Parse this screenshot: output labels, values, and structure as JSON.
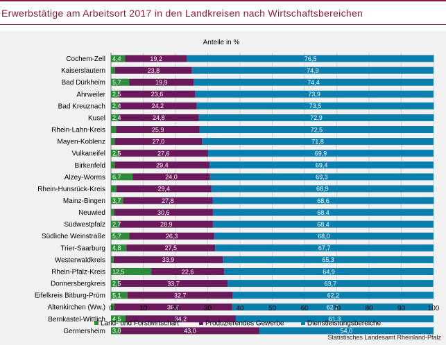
{
  "title": "Erwerbstätige am Arbeitsort 2017 in den Landkreisen nach Wirtschaftsbereichen",
  "source": "Statistisches Landesamt Rheinland-Pfalz",
  "chart_data": {
    "type": "bar",
    "orientation": "horizontal",
    "stacked": true,
    "title": "Anteile in %",
    "xlim": [
      0,
      100
    ],
    "xticks": [
      "0",
      "10",
      "20",
      "30",
      "40",
      "50",
      "60",
      "70",
      "80",
      "90",
      "100"
    ],
    "grid": true,
    "legend_position": "bottom",
    "categories": [
      "Cochem-Zell",
      "Kaiserslautern",
      "Bad Dürkheim",
      "Ahrweiler",
      "Bad Kreuznach",
      "Kusel",
      "Rhein-Lahn-Kreis",
      "Mayen-Koblenz",
      "Vulkaneifel",
      "Birkenfeld",
      "Alzey-Worms",
      "Rhein-Hunsrück-Kreis",
      "Mainz-Bingen",
      "Neuwied",
      "Südwestpfalz",
      "Südliche Weinstraße",
      "Trier-Saarburg",
      "Westerwaldkreis",
      "Rhein-Pfalz-Kreis",
      "Donnersbergkreis",
      "Eifelkreis Bitburg-Prüm",
      "Altenkirchen (Ww.)",
      "Bernkastel-Wittlich",
      "Germersheim"
    ],
    "series": [
      {
        "name": "Land- und Forstwirtschaft",
        "color": "#2e8b3a",
        "values": [
          4.4,
          1.3,
          5.7,
          2.5,
          2.4,
          2.4,
          1.6,
          1.2,
          2.5,
          1.2,
          6.7,
          1.7,
          3.7,
          1.0,
          2.7,
          5.7,
          4.8,
          0.8,
          12.5,
          2.5,
          5.1,
          1.0,
          4.5,
          3.0
        ],
        "labels": [
          "4,4",
          "",
          "5,7",
          "2,5",
          "2,4",
          "2,4",
          "",
          "",
          "2,5",
          "",
          "6,7",
          "",
          "3,7",
          "",
          "2,7",
          "5,7",
          "4,8",
          "",
          "12,5",
          "2,5",
          "5,1",
          "",
          "4,5",
          "3,0"
        ]
      },
      {
        "name": "Produzierendes Gewerbe",
        "color": "#6a1a5b",
        "values": [
          19.2,
          23.8,
          19.9,
          23.6,
          24.2,
          24.8,
          25.9,
          27.0,
          27.6,
          29.4,
          24.0,
          29.4,
          27.8,
          30.6,
          28.9,
          26.3,
          27.5,
          33.9,
          22.6,
          33.7,
          32.7,
          36.6,
          34.2,
          43.0
        ],
        "labels": [
          "19,2",
          "23,8",
          "19,9",
          "23,6",
          "24,2",
          "24,8",
          "25,9",
          "27,0",
          "27,6",
          "29,4",
          "24,0",
          "29,4",
          "27,8",
          "30,6",
          "28,9",
          "26,3",
          "27,5",
          "33,9",
          "22,6",
          "33,7",
          "32,7",
          "36,6",
          "34,2",
          "43,0"
        ]
      },
      {
        "name": "Dienstleistungsbereiche",
        "color": "#0a7fae",
        "values": [
          76.5,
          74.9,
          74.4,
          73.9,
          73.5,
          72.9,
          72.5,
          71.8,
          69.9,
          69.4,
          69.3,
          68.9,
          68.6,
          68.4,
          68.4,
          68.0,
          67.7,
          65.3,
          64.9,
          63.7,
          62.2,
          62.2,
          61.3,
          54.0
        ],
        "labels": [
          "76,5",
          "74,9",
          "74,4",
          "73,9",
          "73,5",
          "72,9",
          "72,5",
          "71,8",
          "69,9",
          "69,4",
          "69,3",
          "68,9",
          "68,6",
          "68,4",
          "68,4",
          "68,0",
          "67,7",
          "65,3",
          "64,9",
          "63,7",
          "62,2",
          "62,2",
          "61,3",
          "54,0"
        ]
      }
    ]
  }
}
